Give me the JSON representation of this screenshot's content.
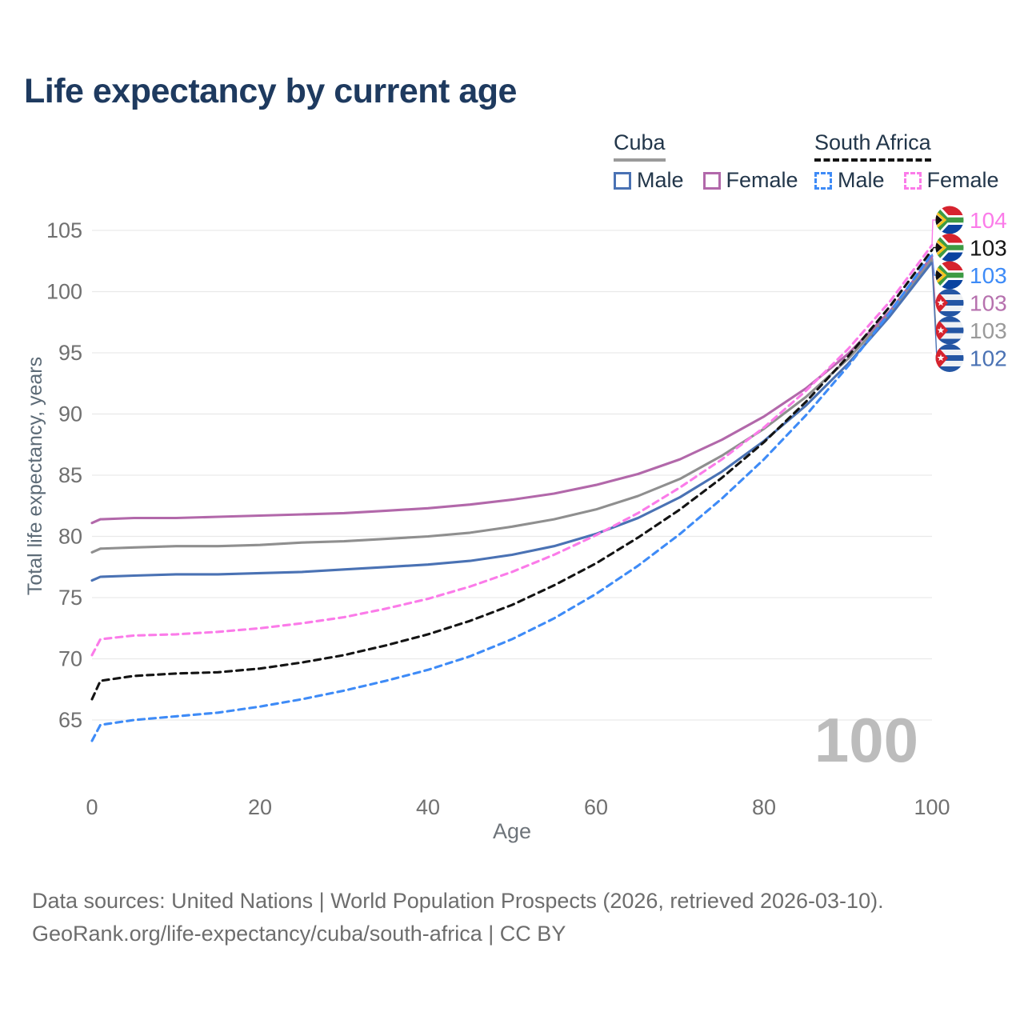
{
  "title": "Life expectancy by current age",
  "watermark_age": "100",
  "legend": {
    "groups": [
      {
        "label": "Cuba",
        "line_color": "#9a9a9a",
        "line_style": "solid",
        "items": [
          {
            "label": "Male",
            "color": "#4a72b4",
            "box_style": "solid"
          },
          {
            "label": "Female",
            "color": "#b268aa",
            "box_style": "solid"
          }
        ]
      },
      {
        "label": "South Africa",
        "line_color": "#141414",
        "line_style": "dashed",
        "items": [
          {
            "label": "Male",
            "color": "#3e8bf7",
            "box_style": "dashed"
          },
          {
            "label": "Female",
            "color": "#fb7be9",
            "box_style": "dashed"
          }
        ]
      }
    ]
  },
  "chart_data": {
    "type": "line",
    "title": "Life expectancy by current age",
    "xlabel": "Age",
    "ylabel": "Total life expectancy, years",
    "xlim": [
      0,
      100
    ],
    "ylim": [
      63,
      105
    ],
    "x_ticks": [
      0,
      20,
      40,
      60,
      80,
      100
    ],
    "y_ticks": [
      65,
      70,
      75,
      80,
      85,
      90,
      95,
      100,
      105
    ],
    "grid": "horizontal",
    "legend_position": "top-right",
    "x": [
      0,
      1,
      5,
      10,
      15,
      20,
      25,
      30,
      35,
      40,
      45,
      50,
      55,
      60,
      65,
      70,
      75,
      80,
      85,
      90,
      95,
      100
    ],
    "series": [
      {
        "id": "cuba-female",
        "country": "cuba",
        "sex": "Female",
        "name": "Cuba Female",
        "color": "#b268aa",
        "dash": false,
        "values": [
          81.1,
          81.4,
          81.5,
          81.5,
          81.6,
          81.7,
          81.8,
          81.9,
          82.1,
          82.3,
          82.6,
          83.0,
          83.5,
          84.2,
          85.1,
          86.3,
          87.9,
          89.8,
          92.1,
          94.9,
          98.4,
          102.9
        ],
        "end_label": "103",
        "end_label_color": "#b671ae"
      },
      {
        "id": "cuba-both",
        "country": "cuba",
        "sex": "Both",
        "name": "Cuba (both sexes)",
        "color": "#8f8f8f",
        "dash": false,
        "values": [
          78.7,
          79.0,
          79.1,
          79.2,
          79.2,
          79.3,
          79.5,
          79.6,
          79.8,
          80.0,
          80.3,
          80.8,
          81.4,
          82.2,
          83.3,
          84.7,
          86.6,
          88.8,
          91.4,
          94.5,
          98.2,
          102.6
        ],
        "end_label": "103",
        "end_label_color": "#9a9a9a"
      },
      {
        "id": "cuba-male",
        "country": "cuba",
        "sex": "Male",
        "name": "Cuba Male",
        "color": "#4a72b4",
        "dash": false,
        "values": [
          76.4,
          76.7,
          76.8,
          76.9,
          76.9,
          77.0,
          77.1,
          77.3,
          77.5,
          77.7,
          78.0,
          78.5,
          79.2,
          80.2,
          81.5,
          83.2,
          85.3,
          87.8,
          90.7,
          94.1,
          98.0,
          102.4
        ],
        "end_label": "102",
        "end_label_color": "#4a72b4"
      },
      {
        "id": "sa-female",
        "country": "south-africa",
        "sex": "Female",
        "name": "South Africa Female",
        "color": "#fb7be9",
        "dash": true,
        "values": [
          70.3,
          71.6,
          71.9,
          72.0,
          72.2,
          72.5,
          72.9,
          73.4,
          74.1,
          74.9,
          75.9,
          77.1,
          78.5,
          80.1,
          81.9,
          84.0,
          86.3,
          88.9,
          91.9,
          95.3,
          99.2,
          103.8
        ],
        "end_label": "104",
        "end_label_color": "#fb7be9"
      },
      {
        "id": "sa-both",
        "country": "south-africa",
        "sex": "Both",
        "name": "South Africa (both sexes)",
        "color": "#141414",
        "dash": true,
        "values": [
          66.7,
          68.2,
          68.6,
          68.8,
          68.9,
          69.2,
          69.7,
          70.3,
          71.1,
          72.0,
          73.1,
          74.4,
          76.0,
          77.8,
          79.9,
          82.2,
          84.8,
          87.7,
          91.0,
          94.7,
          98.8,
          103.4
        ],
        "end_label": "103",
        "end_label_color": "#141414"
      },
      {
        "id": "sa-male",
        "country": "south-africa",
        "sex": "Male",
        "name": "South Africa Male",
        "color": "#3e8bf7",
        "dash": true,
        "values": [
          63.3,
          64.6,
          65.0,
          65.3,
          65.6,
          66.1,
          66.7,
          67.4,
          68.2,
          69.1,
          70.2,
          71.6,
          73.3,
          75.3,
          77.6,
          80.2,
          83.1,
          86.3,
          89.9,
          93.9,
          98.3,
          103.1
        ],
        "end_label": "103",
        "end_label_color": "#3e8bf7"
      }
    ]
  },
  "footer": {
    "line1": "Data sources: United Nations | World Population Prospects (2026, retrieved 2026-03-10).",
    "line2": "GeoRank.org/life-expectancy/cuba/south-africa | CC BY"
  }
}
